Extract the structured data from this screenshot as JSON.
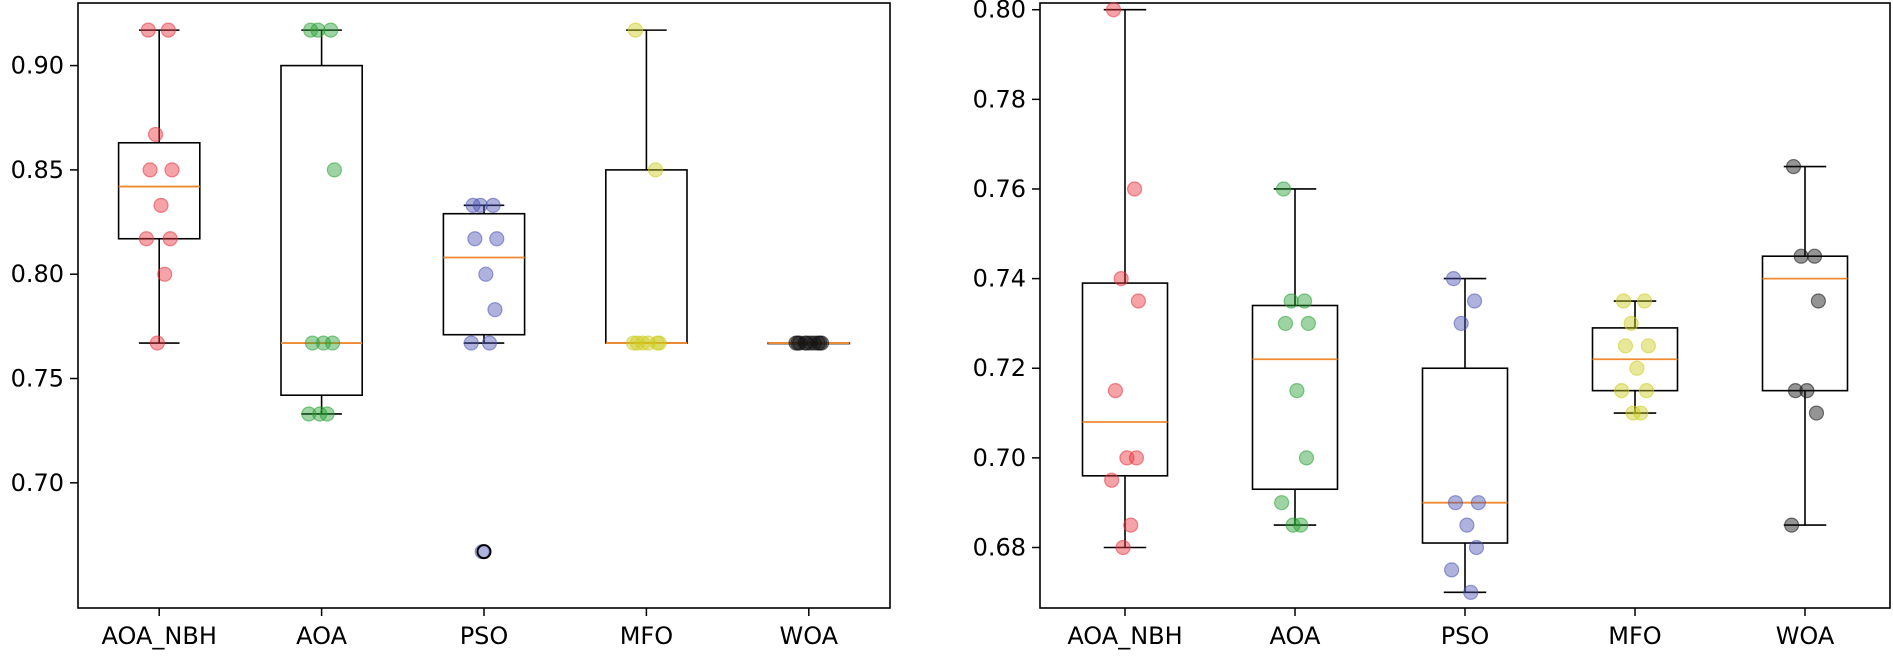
{
  "chart_data": [
    {
      "type": "box",
      "title": "",
      "xlabel": "",
      "ylabel": "",
      "categories": [
        "AOA_NBH",
        "AOA",
        "PSO",
        "MFO",
        "WOA"
      ],
      "ylim": [
        0.64,
        0.93
      ],
      "yticks": [
        "0.70",
        "0.75",
        "0.80",
        "0.85",
        "0.90"
      ],
      "series": [
        {
          "name": "AOA_NBH",
          "color": "#e8323c",
          "box": {
            "whislo": 0.767,
            "q1": 0.817,
            "med": 0.842,
            "q3": 0.863,
            "whishi": 0.917
          },
          "points": [
            0.917,
            0.917,
            0.867,
            0.85,
            0.85,
            0.833,
            0.817,
            0.817,
            0.8,
            0.767
          ]
        },
        {
          "name": "AOA",
          "color": "#27a033",
          "box": {
            "whislo": 0.733,
            "q1": 0.742,
            "med": 0.767,
            "q3": 0.9,
            "whishi": 0.917
          },
          "points": [
            0.917,
            0.917,
            0.917,
            0.85,
            0.767,
            0.767,
            0.767,
            0.733,
            0.733,
            0.733
          ]
        },
        {
          "name": "PSO",
          "color": "#4b55b4",
          "box": {
            "whislo": 0.767,
            "q1": 0.771,
            "med": 0.808,
            "q3": 0.829,
            "whishi": 0.833
          },
          "points": [
            0.833,
            0.833,
            0.833,
            0.817,
            0.817,
            0.8,
            0.783,
            0.767,
            0.767,
            0.667
          ],
          "fliers": [
            0.667
          ]
        },
        {
          "name": "MFO",
          "color": "#cccc1e",
          "box": {
            "whislo": 0.767,
            "q1": 0.767,
            "med": 0.767,
            "q3": 0.85,
            "whishi": 0.917
          },
          "points": [
            0.917,
            0.85,
            0.767,
            0.767,
            0.767,
            0.767,
            0.767,
            0.767
          ]
        },
        {
          "name": "WOA",
          "color": "#111111",
          "box": {
            "whislo": 0.767,
            "q1": 0.767,
            "med": 0.767,
            "q3": 0.767,
            "whishi": 0.767
          },
          "points": [
            0.767,
            0.767,
            0.767,
            0.767,
            0.767,
            0.767,
            0.767,
            0.767,
            0.767,
            0.767
          ]
        }
      ]
    },
    {
      "type": "box",
      "title": "",
      "xlabel": "",
      "ylabel": "",
      "categories": [
        "AOA_NBH",
        "AOA",
        "PSO",
        "MFO",
        "WOA"
      ],
      "ylim": [
        0.6665,
        0.8015
      ],
      "yticks": [
        "0.68",
        "0.70",
        "0.72",
        "0.74",
        "0.76",
        "0.78",
        "0.80"
      ],
      "series": [
        {
          "name": "AOA_NBH",
          "color": "#e8323c",
          "box": {
            "whislo": 0.68,
            "q1": 0.696,
            "med": 0.708,
            "q3": 0.739,
            "whishi": 0.8
          },
          "points": [
            0.8,
            0.76,
            0.74,
            0.735,
            0.715,
            0.7,
            0.7,
            0.695,
            0.685,
            0.68
          ]
        },
        {
          "name": "AOA",
          "color": "#27a033",
          "box": {
            "whislo": 0.685,
            "q1": 0.693,
            "med": 0.722,
            "q3": 0.734,
            "whishi": 0.76
          },
          "points": [
            0.76,
            0.735,
            0.735,
            0.73,
            0.73,
            0.715,
            0.7,
            0.69,
            0.685,
            0.685
          ]
        },
        {
          "name": "PSO",
          "color": "#4b55b4",
          "box": {
            "whislo": 0.67,
            "q1": 0.681,
            "med": 0.69,
            "q3": 0.72,
            "whishi": 0.74
          },
          "points": [
            0.74,
            0.735,
            0.73,
            0.69,
            0.69,
            0.685,
            0.68,
            0.675,
            0.67
          ]
        },
        {
          "name": "MFO",
          "color": "#cccc1e",
          "box": {
            "whislo": 0.71,
            "q1": 0.715,
            "med": 0.722,
            "q3": 0.729,
            "whishi": 0.735
          },
          "points": [
            0.735,
            0.735,
            0.73,
            0.725,
            0.725,
            0.72,
            0.715,
            0.715,
            0.71,
            0.71
          ]
        },
        {
          "name": "WOA",
          "color": "#111111",
          "box": {
            "whislo": 0.685,
            "q1": 0.715,
            "med": 0.74,
            "q3": 0.745,
            "whishi": 0.765
          },
          "points": [
            0.765,
            0.745,
            0.745,
            0.735,
            0.715,
            0.715,
            0.71,
            0.685
          ]
        }
      ]
    }
  ],
  "median_color": "#f08a30"
}
